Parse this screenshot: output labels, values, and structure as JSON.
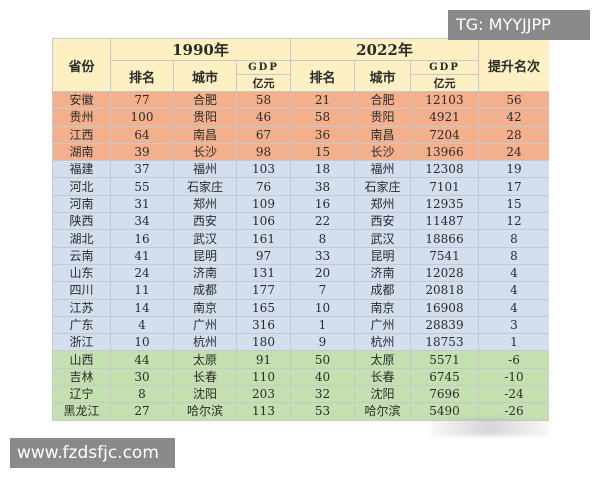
{
  "watermarks": {
    "top_right": "TG: MYYJJPP",
    "bottom_left": "www.fzdsfjc.com"
  },
  "header": {
    "province": "省份",
    "year_1990": "1990年",
    "year_2022": "2022年",
    "rank": "排名",
    "city": "城市",
    "gdp_top": "GDP",
    "gdp_unit": "亿元",
    "rise": "提升名次"
  },
  "colors": {
    "orange": "#f3b08c",
    "blue": "#d3deef",
    "green": "#c4e0b0",
    "header": "#fdf0c3"
  },
  "rows": [
    {
      "group": "orange",
      "province": "安徽",
      "rank1990": "77",
      "city1990": "合肥",
      "gdp1990": "58",
      "rank2022": "21",
      "city2022": "合肥",
      "gdp2022": "12103",
      "rise": "56"
    },
    {
      "group": "orange",
      "province": "贵州",
      "rank1990": "100",
      "city1990": "贵阳",
      "gdp1990": "46",
      "rank2022": "58",
      "city2022": "贵阳",
      "gdp2022": "4921",
      "rise": "42"
    },
    {
      "group": "orange",
      "province": "江西",
      "rank1990": "64",
      "city1990": "南昌",
      "gdp1990": "67",
      "rank2022": "36",
      "city2022": "南昌",
      "gdp2022": "7204",
      "rise": "28"
    },
    {
      "group": "orange",
      "province": "湖南",
      "rank1990": "39",
      "city1990": "长沙",
      "gdp1990": "98",
      "rank2022": "15",
      "city2022": "长沙",
      "gdp2022": "13966",
      "rise": "24"
    },
    {
      "group": "blue",
      "province": "福建",
      "rank1990": "37",
      "city1990": "福州",
      "gdp1990": "103",
      "rank2022": "18",
      "city2022": "福州",
      "gdp2022": "12308",
      "rise": "19"
    },
    {
      "group": "blue",
      "province": "河北",
      "rank1990": "55",
      "city1990": "石家庄",
      "gdp1990": "76",
      "rank2022": "38",
      "city2022": "石家庄",
      "gdp2022": "7101",
      "rise": "17"
    },
    {
      "group": "blue",
      "province": "河南",
      "rank1990": "31",
      "city1990": "郑州",
      "gdp1990": "109",
      "rank2022": "16",
      "city2022": "郑州",
      "gdp2022": "12935",
      "rise": "15"
    },
    {
      "group": "blue",
      "province": "陕西",
      "rank1990": "34",
      "city1990": "西安",
      "gdp1990": "106",
      "rank2022": "22",
      "city2022": "西安",
      "gdp2022": "11487",
      "rise": "12"
    },
    {
      "group": "blue",
      "province": "湖北",
      "rank1990": "16",
      "city1990": "武汉",
      "gdp1990": "161",
      "rank2022": "8",
      "city2022": "武汉",
      "gdp2022": "18866",
      "rise": "8"
    },
    {
      "group": "blue",
      "province": "云南",
      "rank1990": "41",
      "city1990": "昆明",
      "gdp1990": "97",
      "rank2022": "33",
      "city2022": "昆明",
      "gdp2022": "7541",
      "rise": "8"
    },
    {
      "group": "blue",
      "province": "山东",
      "rank1990": "24",
      "city1990": "济南",
      "gdp1990": "131",
      "rank2022": "20",
      "city2022": "济南",
      "gdp2022": "12028",
      "rise": "4"
    },
    {
      "group": "blue",
      "province": "四川",
      "rank1990": "11",
      "city1990": "成都",
      "gdp1990": "177",
      "rank2022": "7",
      "city2022": "成都",
      "gdp2022": "20818",
      "rise": "4"
    },
    {
      "group": "blue",
      "province": "江苏",
      "rank1990": "14",
      "city1990": "南京",
      "gdp1990": "165",
      "rank2022": "10",
      "city2022": "南京",
      "gdp2022": "16908",
      "rise": "4"
    },
    {
      "group": "blue",
      "province": "广东",
      "rank1990": "4",
      "city1990": "广州",
      "gdp1990": "316",
      "rank2022": "1",
      "city2022": "广州",
      "gdp2022": "28839",
      "rise": "3"
    },
    {
      "group": "blue",
      "province": "浙江",
      "rank1990": "10",
      "city1990": "杭州",
      "gdp1990": "180",
      "rank2022": "9",
      "city2022": "杭州",
      "gdp2022": "18753",
      "rise": "1"
    },
    {
      "group": "green",
      "province": "山西",
      "rank1990": "44",
      "city1990": "太原",
      "gdp1990": "91",
      "rank2022": "50",
      "city2022": "太原",
      "gdp2022": "5571",
      "rise": "-6"
    },
    {
      "group": "green",
      "province": "吉林",
      "rank1990": "30",
      "city1990": "长春",
      "gdp1990": "110",
      "rank2022": "40",
      "city2022": "长春",
      "gdp2022": "6745",
      "rise": "-10"
    },
    {
      "group": "green",
      "province": "辽宁",
      "rank1990": "8",
      "city1990": "沈阳",
      "gdp1990": "203",
      "rank2022": "32",
      "city2022": "沈阳",
      "gdp2022": "7696",
      "rise": "-24"
    },
    {
      "group": "green",
      "province": "黑龙江",
      "rank1990": "27",
      "city1990": "哈尔滨",
      "gdp1990": "113",
      "rank2022": "53",
      "city2022": "哈尔滨",
      "gdp2022": "5490",
      "rise": "-26"
    }
  ]
}
